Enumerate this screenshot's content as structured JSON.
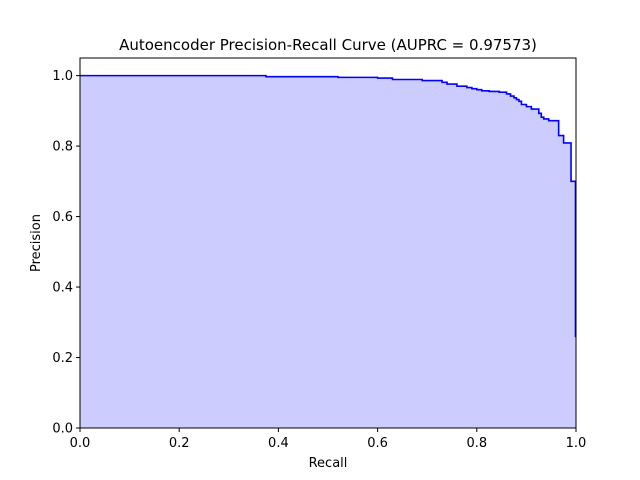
{
  "chart_data": {
    "type": "area",
    "title": "Autoencoder Precision-Recall Curve (AUPRC = 0.97573)",
    "xlabel": "Recall",
    "ylabel": "Precision",
    "xlim": [
      0,
      1
    ],
    "ylim": [
      0,
      1.05
    ],
    "xticks": [
      "0.0",
      "0.2",
      "0.4",
      "0.6",
      "0.8",
      "1.0"
    ],
    "yticks": [
      "0.0",
      "0.2",
      "0.4",
      "0.6",
      "0.8",
      "1.0"
    ],
    "grid": false,
    "legend": "none",
    "line_color": "#0000ff",
    "fill_color": "#ccccff",
    "series": [
      {
        "x": [
          0.0,
          0.375,
          0.375,
          0.52,
          0.52,
          0.6,
          0.6,
          0.63,
          0.63,
          0.69,
          0.69,
          0.73,
          0.73,
          0.74,
          0.74,
          0.76,
          0.76,
          0.78,
          0.78,
          0.79,
          0.79,
          0.8,
          0.8,
          0.81,
          0.81,
          0.825,
          0.825,
          0.845,
          0.845,
          0.86,
          0.86,
          0.868,
          0.868,
          0.875,
          0.875,
          0.88,
          0.88,
          0.885,
          0.885,
          0.89,
          0.89,
          0.9,
          0.9,
          0.91,
          0.91,
          0.925,
          0.925,
          0.93,
          0.93,
          0.935,
          0.935,
          0.945,
          0.945,
          0.965,
          0.965,
          0.975,
          0.975,
          0.99,
          0.99,
          0.993,
          0.993,
          0.999,
          0.999,
          1.0
        ],
        "y": [
          1.0,
          1.0,
          0.997,
          0.997,
          0.995,
          0.995,
          0.993,
          0.993,
          0.989,
          0.989,
          0.986,
          0.986,
          0.981,
          0.981,
          0.976,
          0.976,
          0.97,
          0.97,
          0.966,
          0.966,
          0.963,
          0.963,
          0.96,
          0.96,
          0.957,
          0.957,
          0.955,
          0.955,
          0.953,
          0.953,
          0.948,
          0.948,
          0.942,
          0.942,
          0.937,
          0.937,
          0.932,
          0.932,
          0.927,
          0.927,
          0.918,
          0.918,
          0.912,
          0.912,
          0.905,
          0.905,
          0.893,
          0.893,
          0.882,
          0.882,
          0.877,
          0.877,
          0.872,
          0.872,
          0.83,
          0.83,
          0.809,
          0.809,
          0.7,
          0.7,
          0.7,
          0.7,
          0.26,
          0.26
        ]
      }
    ]
  }
}
